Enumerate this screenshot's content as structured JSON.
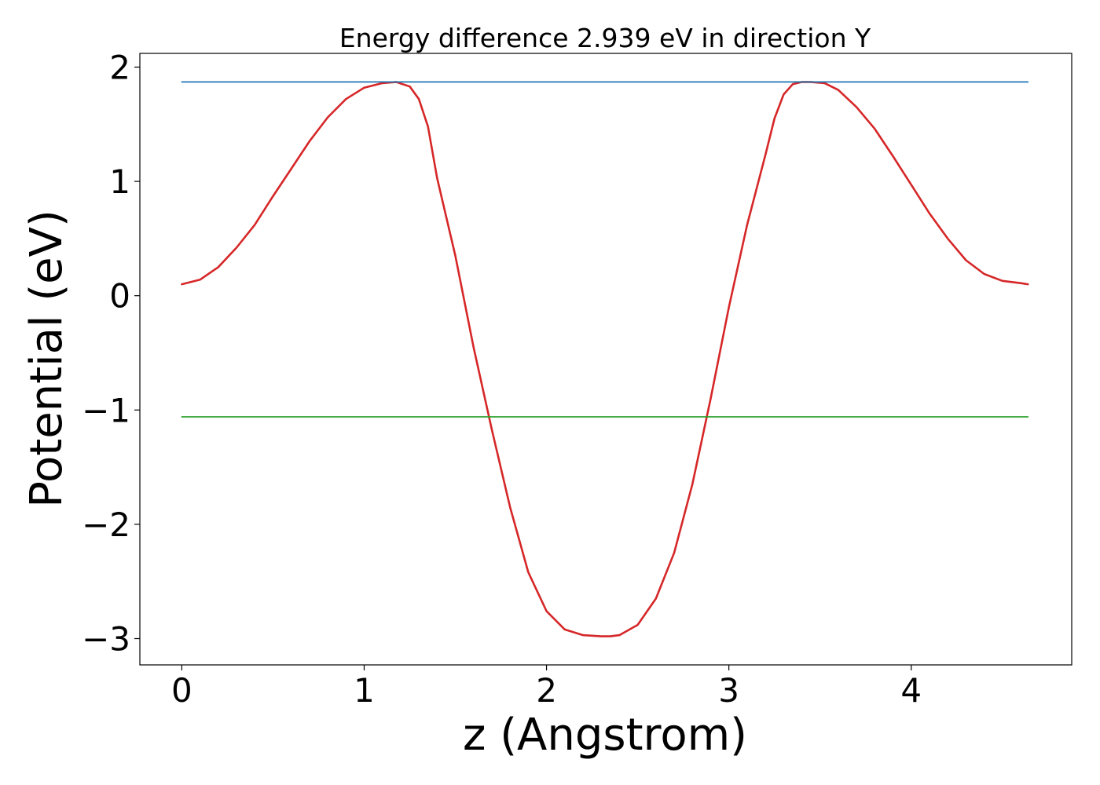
{
  "chart_data": {
    "type": "line",
    "title": "Energy difference 2.939 eV in direction Y",
    "xlabel": "z (Angstrom)",
    "ylabel": "Potential (eV)",
    "xlim": [
      -0.23,
      4.88
    ],
    "ylim": [
      -3.23,
      2.12
    ],
    "grid": false,
    "x_ticks": [
      0,
      1,
      2,
      3,
      4
    ],
    "x_tick_labels": [
      "0",
      "1",
      "2",
      "3",
      "4"
    ],
    "y_ticks": [
      2,
      1,
      0,
      -1,
      -2,
      -3
    ],
    "y_tick_labels": [
      "2",
      "1",
      "0",
      "−1",
      "−2",
      "−3"
    ],
    "series": [
      {
        "color": "#d62728",
        "x": [
          0.0,
          0.1,
          0.2,
          0.3,
          0.4,
          0.5,
          0.6,
          0.7,
          0.8,
          0.9,
          1.0,
          1.1,
          1.175,
          1.25,
          1.3,
          1.35,
          1.4,
          1.5,
          1.6,
          1.7,
          1.8,
          1.9,
          2.0,
          2.1,
          2.2,
          2.3,
          2.35,
          2.4,
          2.5,
          2.6,
          2.7,
          2.8,
          2.9,
          3.0,
          3.1,
          3.2,
          3.25,
          3.3,
          3.35,
          3.4,
          3.45,
          3.525,
          3.6,
          3.7,
          3.8,
          3.9,
          4.0,
          4.1,
          4.2,
          4.3,
          4.4,
          4.5,
          4.6,
          4.64
        ],
        "y": [
          0.1,
          0.14,
          0.25,
          0.42,
          0.62,
          0.87,
          1.11,
          1.35,
          1.56,
          1.72,
          1.82,
          1.86,
          1.87,
          1.83,
          1.72,
          1.48,
          1.03,
          0.35,
          -0.45,
          -1.17,
          -1.85,
          -2.42,
          -2.76,
          -2.92,
          -2.97,
          -2.98,
          -2.98,
          -2.97,
          -2.88,
          -2.65,
          -2.25,
          -1.65,
          -0.9,
          -0.1,
          0.62,
          1.23,
          1.55,
          1.76,
          1.85,
          1.87,
          1.87,
          1.86,
          1.8,
          1.65,
          1.46,
          1.22,
          0.97,
          0.72,
          0.5,
          0.31,
          0.19,
          0.13,
          0.11,
          0.1
        ]
      },
      {
        "color": "#1f77b4",
        "x": [
          0.0,
          4.64
        ],
        "y": [
          1.87,
          1.87
        ]
      },
      {
        "color": "#2ca02c",
        "x": [
          0.0,
          4.64
        ],
        "y": [
          -1.06,
          -1.06
        ]
      }
    ]
  }
}
